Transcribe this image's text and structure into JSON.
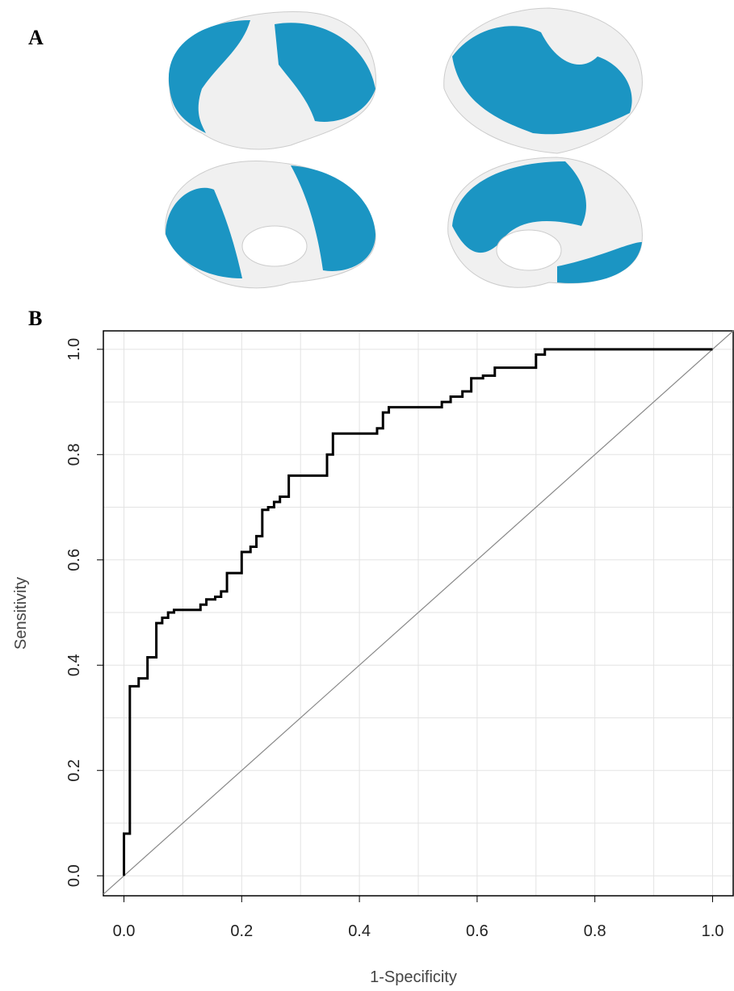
{
  "panel_a_label": "A",
  "panel_b_label": "B",
  "chart_data": {
    "type": "step-line",
    "x_label": "1-Specificity",
    "y_label": "Sensitivity",
    "xlim": [
      -0.035,
      1.035
    ],
    "ylim": [
      -0.038,
      1.035
    ],
    "xticks": [
      {
        "value": 0,
        "label": "0.0"
      },
      0.2,
      0.4,
      0.6,
      0.8,
      {
        "value": 1,
        "label": "1.0"
      }
    ],
    "yticks": [
      {
        "value": 0,
        "label": "0.0"
      },
      0.2,
      0.4,
      0.6,
      0.8,
      {
        "value": 1,
        "label": "1.0"
      }
    ],
    "grid": true,
    "xgrid": [
      0,
      0.1,
      0.2,
      0.3,
      0.4,
      0.5,
      0.6,
      0.7,
      0.8,
      0.9,
      1
    ],
    "ygrid": [
      0,
      0.1,
      0.2,
      0.3,
      0.4,
      0.5,
      0.6,
      0.7,
      0.8,
      0.9,
      1
    ],
    "reference_line": {
      "color": "#888888",
      "x": [
        -0.035,
        1.035
      ],
      "y": [
        -0.035,
        1.035
      ]
    },
    "curve": {
      "color": "#000000",
      "x": [
        0,
        0,
        0.01,
        0.01,
        0.025,
        0.025,
        0.04,
        0.04,
        0.055,
        0.055,
        0.065,
        0.065,
        0.075,
        0.075,
        0.085,
        0.085,
        0.13,
        0.13,
        0.14,
        0.14,
        0.155,
        0.155,
        0.165,
        0.165,
        0.175,
        0.175,
        0.2,
        0.2,
        0.215,
        0.215,
        0.225,
        0.225,
        0.235,
        0.235,
        0.245,
        0.245,
        0.255,
        0.255,
        0.265,
        0.265,
        0.28,
        0.28,
        0.345,
        0.345,
        0.355,
        0.355,
        0.43,
        0.43,
        0.44,
        0.44,
        0.45,
        0.45,
        0.54,
        0.54,
        0.555,
        0.555,
        0.575,
        0.575,
        0.59,
        0.59,
        0.61,
        0.61,
        0.63,
        0.63,
        0.7,
        0.7,
        0.715,
        0.715,
        1
      ],
      "y": [
        0,
        0.08,
        0.08,
        0.36,
        0.36,
        0.375,
        0.375,
        0.415,
        0.415,
        0.48,
        0.48,
        0.49,
        0.49,
        0.5,
        0.5,
        0.505,
        0.505,
        0.515,
        0.515,
        0.525,
        0.525,
        0.53,
        0.53,
        0.54,
        0.54,
        0.575,
        0.575,
        0.615,
        0.615,
        0.625,
        0.625,
        0.645,
        0.645,
        0.695,
        0.695,
        0.7,
        0.7,
        0.71,
        0.71,
        0.72,
        0.72,
        0.76,
        0.76,
        0.8,
        0.8,
        0.84,
        0.84,
        0.85,
        0.85,
        0.88,
        0.88,
        0.89,
        0.89,
        0.9,
        0.9,
        0.91,
        0.91,
        0.92,
        0.92,
        0.945,
        0.945,
        0.95,
        0.95,
        0.965,
        0.965,
        0.99,
        0.99,
        1,
        1
      ]
    }
  }
}
